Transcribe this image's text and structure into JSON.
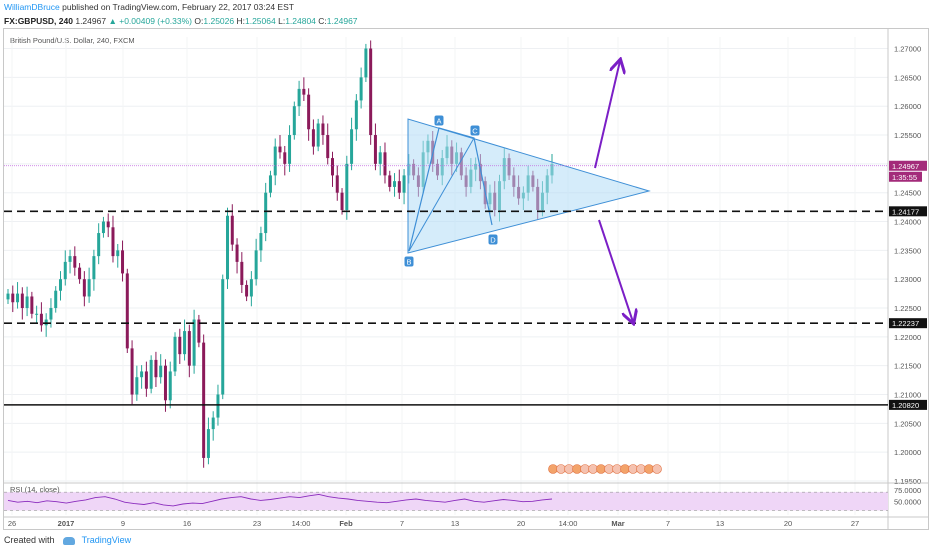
{
  "header": {
    "author": "WilliamDBruce",
    "published": "published on TradingView.com, February 22, 2017 03:24 EST",
    "symbol": "FX:GBPUSD, 240",
    "last": "1.24967",
    "change": "▲ +0.00409 (+0.33%)",
    "o_label": "O:",
    "o": "1.25026",
    "h_label": "H:",
    "h": "1.25064",
    "l_label": "L:",
    "l": "1.24804",
    "c_label": "C:",
    "c": "1.24967"
  },
  "footer": {
    "created_with": "Created with",
    "brand": "TradingView"
  },
  "colors": {
    "up": "#26a69a",
    "down": "#8b1a5a",
    "triangle_fill": "#b3dcf5",
    "triangle_stroke": "#3e8fd6",
    "arrow": "#7b1fc6",
    "current_price_line": "#c264e0",
    "rsi_fill": "#efd6f7",
    "rsi_line": "#8a2bbd"
  },
  "chart_data": {
    "type": "candlestick",
    "title": "British Pound/U.S. Dollar, 240, FXCM",
    "ylim": [
      1.195,
      1.272
    ],
    "y_ticks": [
      "1.27000",
      "1.26500",
      "1.26000",
      "1.25500",
      "1.25000",
      "1.24500",
      "1.24000",
      "1.23500",
      "1.23000",
      "1.22500",
      "1.22000",
      "1.21500",
      "1.21000",
      "1.20500",
      "1.20000",
      "1.19500"
    ],
    "x_ticks": [
      "26",
      "2017",
      "9",
      "16",
      "23",
      "14:00",
      "Feb",
      "7",
      "13",
      "20",
      "14:00",
      "Mar",
      "7",
      "13",
      "20",
      "27"
    ],
    "close": [
      1.2275,
      1.226,
      1.2275,
      1.225,
      1.227,
      1.224,
      1.224,
      1.222,
      1.223,
      1.225,
      1.228,
      1.23,
      1.233,
      1.234,
      1.232,
      1.23,
      1.227,
      1.23,
      1.234,
      1.238,
      1.24,
      1.239,
      1.234,
      1.235,
      1.231,
      1.218,
      1.21,
      1.213,
      1.214,
      1.211,
      1.216,
      1.213,
      1.215,
      1.209,
      1.214,
      1.22,
      1.217,
      1.221,
      1.215,
      1.223,
      1.219,
      1.199,
      1.204,
      1.206,
      1.21,
      1.23,
      1.241,
      1.236,
      1.233,
      1.229,
      1.227,
      1.23,
      1.235,
      1.238,
      1.245,
      1.248,
      1.253,
      1.252,
      1.25,
      1.255,
      1.26,
      1.263,
      1.262,
      1.256,
      1.253,
      1.257,
      1.255,
      1.251,
      1.248,
      1.245,
      1.242,
      1.25,
      1.256,
      1.261,
      1.265,
      1.27,
      1.255,
      1.25,
      1.252,
      1.248,
      1.246,
      1.247,
      1.245,
      1.248,
      1.25,
      1.248,
      1.246,
      1.252,
      1.254,
      1.25,
      1.248,
      1.251,
      1.253,
      1.25,
      1.252,
      1.248,
      1.246,
      1.249,
      1.25,
      1.247,
      1.243,
      1.245,
      1.242,
      1.247,
      1.251,
      1.248,
      1.246,
      1.244,
      1.245,
      1.248,
      1.246,
      1.242,
      1.245,
      1.248,
      1.25
    ],
    "last_price": "1.24967",
    "last_countdown": "1:35:55",
    "horizontal_levels": [
      {
        "value": 1.24177,
        "label": "1.24177",
        "style": "dashed"
      },
      {
        "value": 1.22237,
        "label": "1.22237",
        "style": "dashed"
      },
      {
        "value": 1.2082,
        "label": "1.20820",
        "style": "solid"
      }
    ],
    "pattern_labels": [
      "A",
      "B",
      "C",
      "D"
    ],
    "rsi": {
      "label": "RSI (14, close)",
      "y_ticks": [
        "75.0000",
        "50.0000"
      ],
      "band": [
        30,
        70
      ],
      "values": [
        52,
        48,
        50,
        47,
        51,
        49,
        46,
        50,
        53,
        58,
        60,
        55,
        48,
        45,
        43,
        47,
        42,
        40,
        44,
        46,
        45,
        50,
        55,
        58,
        60,
        55,
        52,
        54,
        57,
        60,
        58,
        62,
        65,
        60,
        57,
        55,
        52,
        50,
        48,
        47,
        50,
        53,
        55,
        52,
        50,
        48,
        52,
        55,
        50,
        48,
        51,
        54,
        52,
        49,
        50,
        53,
        55
      ]
    }
  }
}
